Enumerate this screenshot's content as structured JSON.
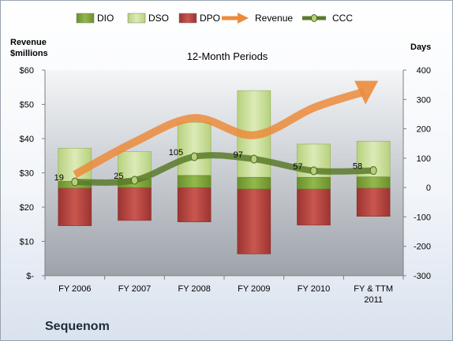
{
  "company": "Sequenom",
  "chart_data": {
    "type": "bar",
    "title": "12-Month Periods",
    "left_axis_label": [
      "Revenue",
      "$millions"
    ],
    "right_axis_label": "Days",
    "categories": [
      [
        "FY 2006"
      ],
      [
        "FY 2007"
      ],
      [
        "FY 2008"
      ],
      [
        "FY 2009"
      ],
      [
        "FY 2010"
      ],
      [
        "FY & TTM",
        "2011"
      ]
    ],
    "left_ylim": [
      0,
      60
    ],
    "left_ticks": [
      0,
      10,
      20,
      30,
      40,
      50,
      60
    ],
    "left_tick_labels": [
      "$-",
      "$10",
      "$20",
      "$30",
      "$40",
      "$50",
      "$60"
    ],
    "right_ylim": [
      -300,
      400
    ],
    "right_ticks": [
      -300,
      -200,
      -100,
      0,
      100,
      200,
      300,
      400
    ],
    "right_tick_labels": [
      "-300",
      "-200",
      "-100",
      "0",
      "100",
      "200",
      "300",
      "400"
    ],
    "series": [
      {
        "name": "DIO",
        "axis": "right",
        "kind": "stacked-bar",
        "values": [
          -2,
          5,
          5,
          -5,
          -5,
          -2
        ]
      },
      {
        "name": "DSO",
        "axis": "right",
        "kind": "stacked-bar",
        "values": [
          34,
          40,
          58,
          56,
          56,
          58
        ]
      },
      {
        "name": "DPO",
        "axis": "right",
        "kind": "stacked-bar",
        "values": [
          -130,
          -112,
          -117,
          -226,
          -128,
          -98
        ]
      },
      {
        "name": "Revenue",
        "axis": "left",
        "kind": "smooth-arrow-line",
        "values": [
          29.5,
          39,
          46,
          41,
          49,
          55.5
        ]
      },
      {
        "name": "CCC",
        "axis": "right",
        "kind": "smooth-line",
        "values": [
          19,
          25,
          105,
          97,
          57,
          58
        ],
        "data_labels": [
          "19",
          "25",
          "105",
          "97",
          "57",
          "58"
        ]
      }
    ],
    "stack_tops": [
      134,
      122,
      222,
      330,
      148,
      158
    ],
    "legend": [
      {
        "name": "DIO",
        "symbol": "bar"
      },
      {
        "name": "DSO",
        "symbol": "bar"
      },
      {
        "name": "DPO",
        "symbol": "bar"
      },
      {
        "name": "Revenue",
        "symbol": "arrow"
      },
      {
        "name": "CCC",
        "symbol": "line-marker"
      }
    ],
    "legend_position": "top",
    "grid": false,
    "colors": {
      "DIO": "#7ea33a",
      "DSO": "#c5dd8f",
      "DPO": "#b5423e",
      "Revenue": "#ec8b3b",
      "CCC": "#5a7a2a"
    }
  }
}
